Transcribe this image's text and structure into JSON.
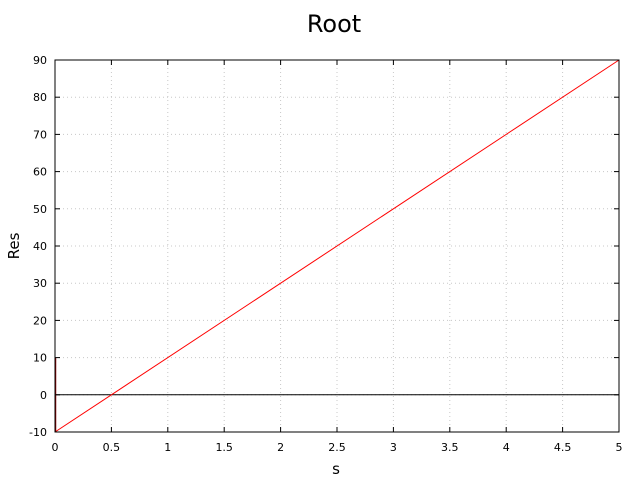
{
  "chart_data": {
    "type": "line",
    "title": "Root",
    "xlabel": "s",
    "ylabel": "Res",
    "xlim": [
      0,
      5
    ],
    "ylim": [
      -10,
      90
    ],
    "x_ticks": [
      0,
      0.5,
      1,
      1.5,
      2,
      2.5,
      3,
      3.5,
      4,
      4.5,
      5
    ],
    "x_tick_labels": [
      "0",
      "0.5",
      "1",
      "1.5",
      "2",
      "2.5",
      "3",
      "3.5",
      "4",
      "4.5",
      "5"
    ],
    "y_ticks": [
      -10,
      0,
      10,
      20,
      30,
      40,
      50,
      60,
      70,
      80,
      90
    ],
    "y_tick_labels": [
      "-10",
      "0",
      "10",
      "20",
      "30",
      "40",
      "50",
      "60",
      "70",
      "80",
      "90"
    ],
    "grid": true,
    "series": [
      {
        "x": [
          0,
          5
        ],
        "y": [
          -10,
          90
        ],
        "color": "#ff0000"
      }
    ],
    "reference_lines": [
      {
        "axis": "y",
        "value": 0,
        "color": "#000000"
      }
    ],
    "spike": {
      "x": 0,
      "y": [
        -10,
        10
      ],
      "color": "#8b0000"
    }
  }
}
